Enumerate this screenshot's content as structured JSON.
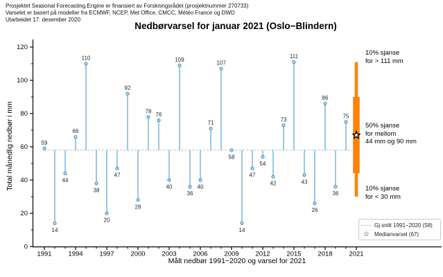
{
  "header": {
    "line1": "Prosjektet Seasonal Forecasting Engine er finansiert av Forskningsrådet (prosjektnummer 270733)",
    "line2": "Varselet er basert på modeller fra ECMWF, NCEP, Met Office, CMCC, Météo France og DWD",
    "line3": "Utarbeidet 17. desember 2020"
  },
  "title": "Nedbørvarsel for januar 2021 (Oslo−Blindern)",
  "axes": {
    "ylabel": "Total månedlig nedbør i mm",
    "xlabel": "Målt nedbør 1991−2020 og varsel for 2021"
  },
  "annotations": {
    "upper": {
      "line1": "10% sjanse",
      "line2": "for > 111 mm"
    },
    "middle": {
      "line1": "50% sjanse",
      "line2": "for mellom",
      "line3": "44 mm og 90 mm"
    },
    "lower": {
      "line1": "10% sjanse",
      "line2": "for < 30 mm"
    }
  },
  "legend": {
    "mean_label": "Gj.snitt 1991−2020 (58)",
    "median_label": "Medianvarsel (67)",
    "star_glyph": "☆"
  },
  "colors": {
    "stem": "#5b9fd0",
    "marker_fill": "#b5d5ec",
    "marker_edge": "#4890c2",
    "mean_line": "#a8cbe4",
    "forecast_bar": "#fd820a",
    "star_fill": "#ffffff",
    "star_edge": "#000000",
    "axis": "#000000",
    "value_label": "#262626"
  },
  "chart_data": {
    "type": "scatter",
    "subtype": "stem-lollipop",
    "title": "Nedbørvarsel for januar 2021 (Oslo−Blindern)",
    "xlabel": "Målt nedbør 1991−2020 og varsel for 2021",
    "ylabel": "Total månedlig nedbør i mm",
    "x": [
      1991,
      1992,
      1993,
      1994,
      1995,
      1996,
      1997,
      1998,
      1999,
      2000,
      2001,
      2002,
      2003,
      2004,
      2005,
      2006,
      2007,
      2008,
      2009,
      2010,
      2011,
      2012,
      2013,
      2014,
      2015,
      2016,
      2017,
      2018,
      2019,
      2020
    ],
    "values": [
      59,
      14,
      44,
      66,
      110,
      38,
      20,
      47,
      92,
      28,
      78,
      76,
      40,
      109,
      36,
      40,
      71,
      107,
      58,
      14,
      47,
      54,
      42,
      73,
      111,
      43,
      26,
      86,
      36,
      75
    ],
    "mean_1991_2020": 58,
    "ylim": [
      0,
      120
    ],
    "yticks": [
      0,
      20,
      40,
      60,
      80,
      100,
      120
    ],
    "xticks": [
      1991,
      1994,
      1997,
      2000,
      2003,
      2006,
      2009,
      2012,
      2015,
      2018,
      2021
    ],
    "forecast_2021": {
      "year": 2021,
      "median": 67,
      "pct50_range": [
        44,
        90
      ],
      "pct10_above": 111,
      "pct10_below": 30
    },
    "grid": false,
    "legend_position": "lower right"
  }
}
